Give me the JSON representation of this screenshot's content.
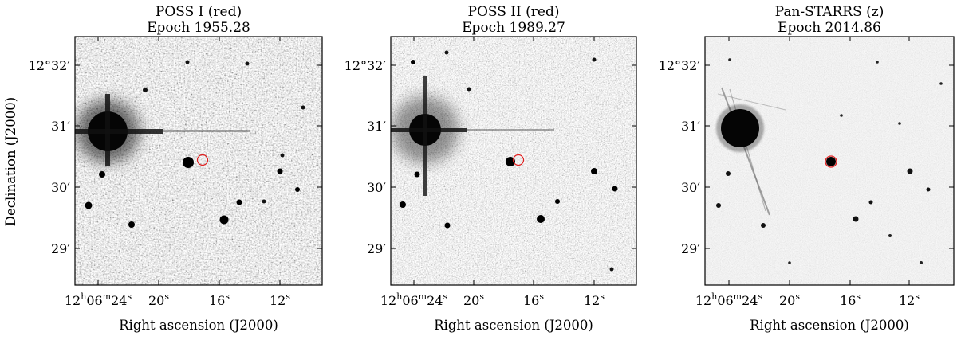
{
  "figure": {
    "y_axis_label": "Declination (J2000)",
    "x_axis_label": "Right ascension (J2000)",
    "dec_ticks": [
      "12°32′",
      "31′",
      "30′",
      "29′"
    ],
    "ra_ticks": [
      {
        "h": "12",
        "hs": "h",
        "m": "06",
        "ms": "m",
        "s": "24",
        "ss": "s"
      },
      {
        "s": "20",
        "ss": "s"
      },
      {
        "s": "16",
        "ss": "s"
      },
      {
        "s": "12",
        "ss": "s"
      }
    ],
    "marker_color": "#e02020"
  },
  "panels": [
    {
      "survey": "POSS I (red)",
      "epoch": "Epoch 1955.28"
    },
    {
      "survey": "POSS II (red)",
      "epoch": "Epoch 1989.27"
    },
    {
      "survey": "Pan-STARRS (z)",
      "epoch": "Epoch 2014.86"
    }
  ]
}
